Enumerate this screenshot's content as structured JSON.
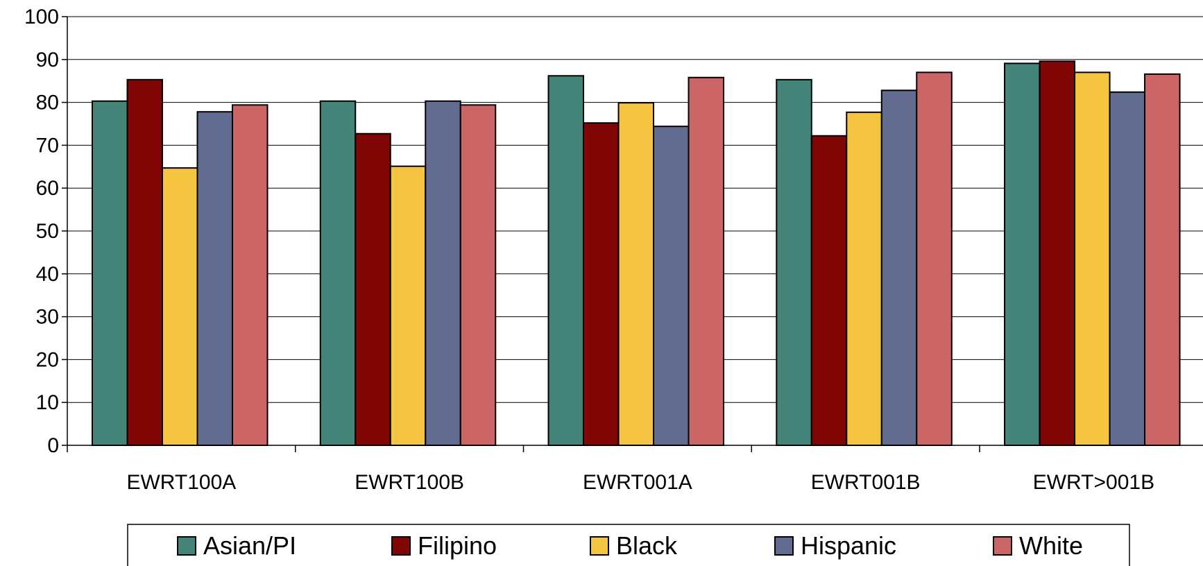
{
  "chart_data": {
    "type": "bar",
    "title": "",
    "xlabel": "",
    "ylabel": "",
    "ylim": [
      0,
      100
    ],
    "yticks": [
      0,
      10,
      20,
      30,
      40,
      50,
      60,
      70,
      80,
      90,
      100
    ],
    "grid": true,
    "legend_position": "bottom",
    "categories": [
      "EWRT100A",
      "EWRT100B",
      "EWRT001A",
      "EWRT001B",
      "EWRT>001B"
    ],
    "series": [
      {
        "name": "Asian/PI",
        "color": "#458579",
        "values": [
          80.3,
          80.3,
          86.2,
          85.3,
          89.1
        ]
      },
      {
        "name": "Filipino",
        "color": "#800606",
        "values": [
          85.3,
          72.7,
          75.2,
          72.2,
          89.6
        ]
      },
      {
        "name": "Black",
        "color": "#f5c542",
        "values": [
          64.7,
          65.1,
          79.9,
          77.7,
          87.0
        ]
      },
      {
        "name": "Hispanic",
        "color": "#626b90",
        "values": [
          77.8,
          80.3,
          74.4,
          82.8,
          82.4
        ]
      },
      {
        "name": "White",
        "color": "#cc6666",
        "values": [
          79.4,
          79.4,
          85.8,
          87.0,
          86.6
        ]
      }
    ]
  }
}
